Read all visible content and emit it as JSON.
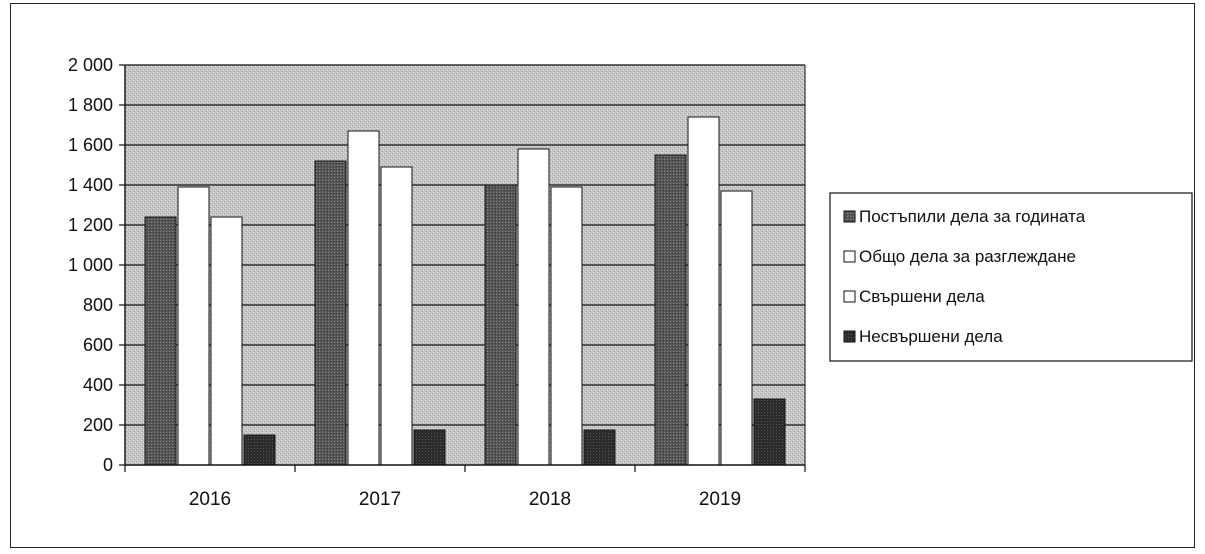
{
  "chart_data": {
    "type": "bar",
    "categories": [
      "2016",
      "2017",
      "2018",
      "2019"
    ],
    "series": [
      {
        "name": "Постъпили дела за годината",
        "values": [
          1240,
          1520,
          1400,
          1550
        ]
      },
      {
        "name": "Общо дела за разглеждане",
        "values": [
          1390,
          1670,
          1580,
          1740
        ]
      },
      {
        "name": "Свършени дела",
        "values": [
          1240,
          1490,
          1390,
          1370
        ]
      },
      {
        "name": "Несвършени дела",
        "values": [
          150,
          175,
          175,
          330
        ]
      }
    ],
    "y_ticks": [
      "0",
      "200",
      "400",
      "600",
      "800",
      "1 000",
      "1 200",
      "1 400",
      "1 600",
      "1 800",
      "2 000"
    ],
    "ylim": [
      0,
      2000
    ],
    "grid": true,
    "legend_position": "right",
    "colors": {
      "plot_background": "#c4c4c4",
      "gridline": "#111111",
      "series": [
        "#5a5a5a",
        "#ffffff",
        "#ffffff",
        "#2e2e2e"
      ]
    }
  }
}
